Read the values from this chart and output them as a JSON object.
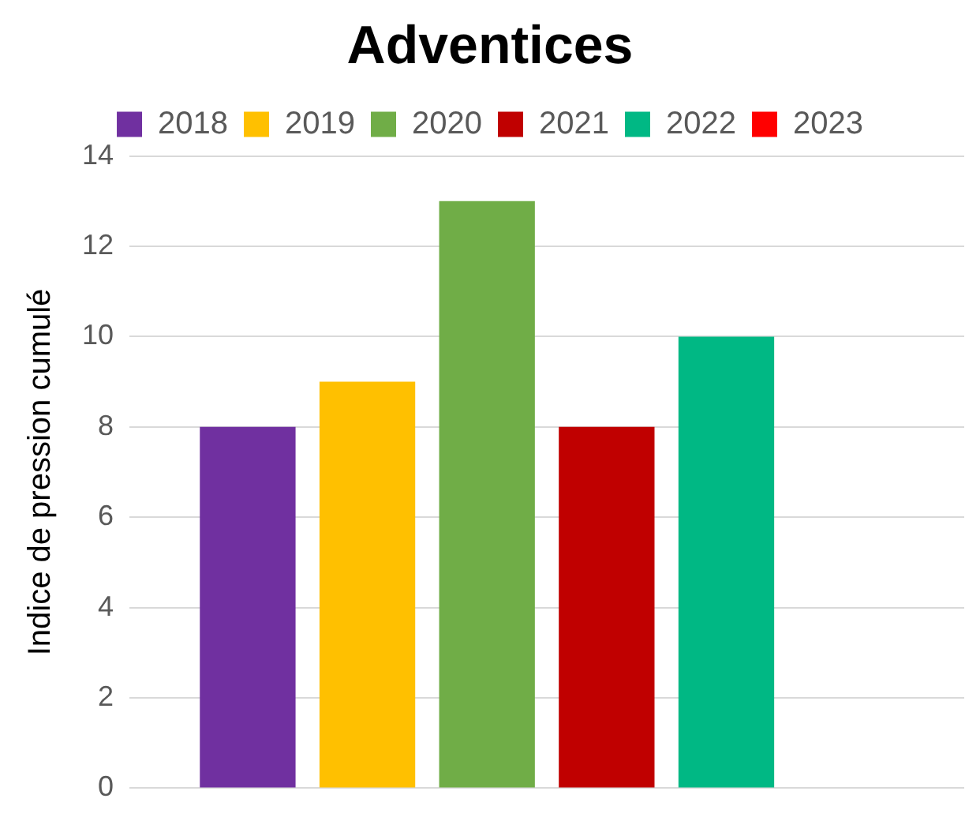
{
  "chart_data": {
    "type": "bar",
    "title": "Adventices",
    "ylabel": "Indice de pression cumulé",
    "categories": [
      null
    ],
    "series": [
      {
        "name": "2018",
        "color": "#7030a0",
        "values": [
          8
        ]
      },
      {
        "name": "2019",
        "color": "#ffc000",
        "values": [
          9
        ]
      },
      {
        "name": "2020",
        "color": "#70ad47",
        "values": [
          13
        ]
      },
      {
        "name": "2021",
        "color": "#c00000",
        "values": [
          8
        ]
      },
      {
        "name": "2022",
        "color": "#00b884",
        "values": [
          10
        ]
      },
      {
        "name": "2023",
        "color": "#ff0000",
        "values": [
          null
        ]
      }
    ],
    "ylim": [
      0,
      14
    ],
    "yticks": [
      0,
      2,
      4,
      6,
      8,
      10,
      12,
      14
    ],
    "grid": "y",
    "legend": "top"
  }
}
